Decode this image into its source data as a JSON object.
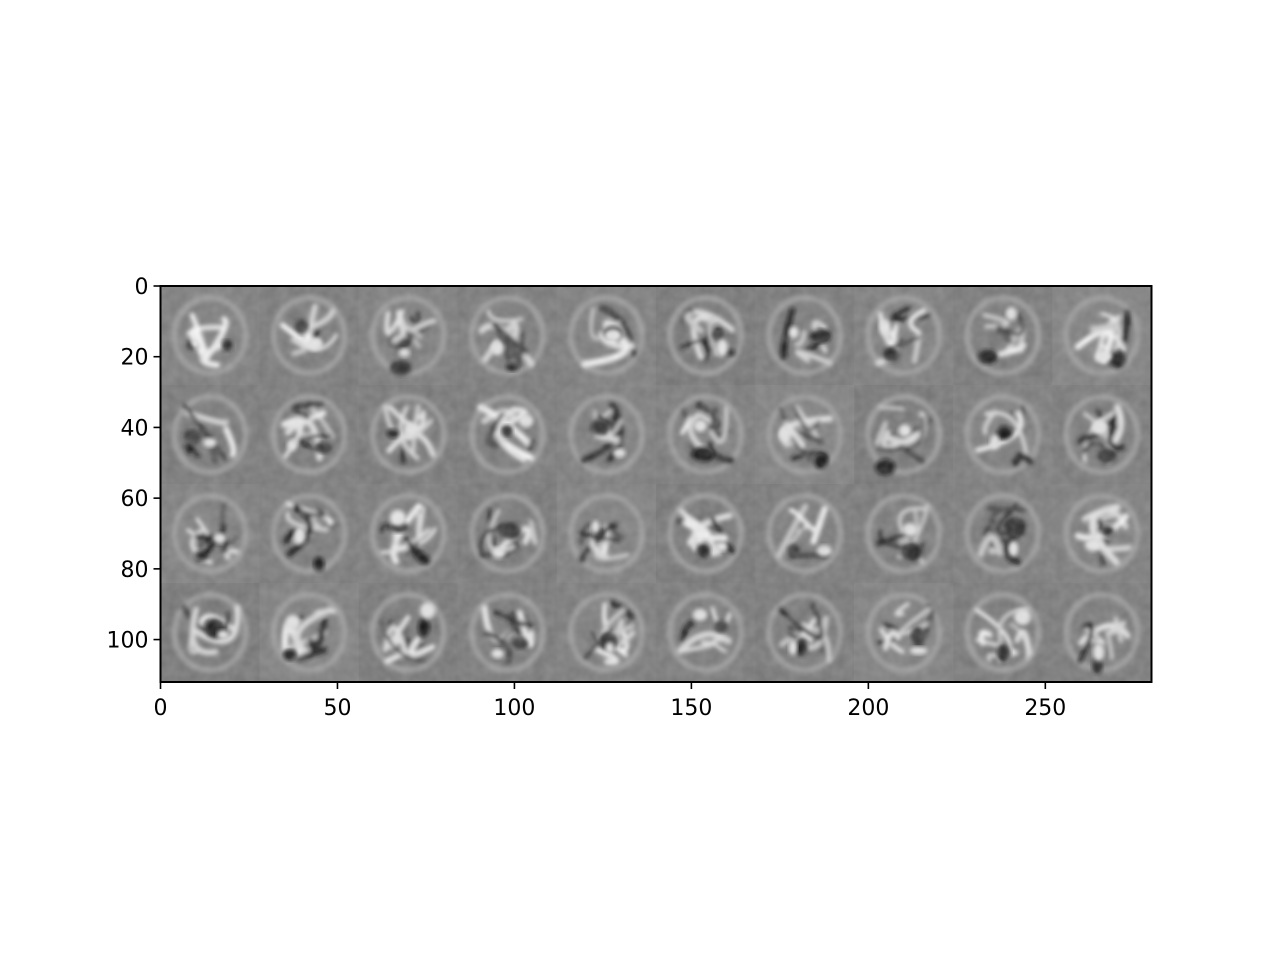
{
  "chart_data": {
    "type": "heatmap",
    "title": "",
    "xlabel": "",
    "ylabel": "",
    "colormap": "gray",
    "image_width": 280,
    "image_height": 112,
    "xlim": [
      0,
      280
    ],
    "ylim": [
      112,
      0
    ],
    "xticks": [
      0,
      50,
      100,
      150,
      200,
      250
    ],
    "yticks": [
      0,
      20,
      40,
      60,
      80,
      100
    ],
    "grid_rows": 4,
    "grid_cols": 10,
    "tile_size": 28,
    "background_color": "#7f7f7f",
    "grid": false
  }
}
